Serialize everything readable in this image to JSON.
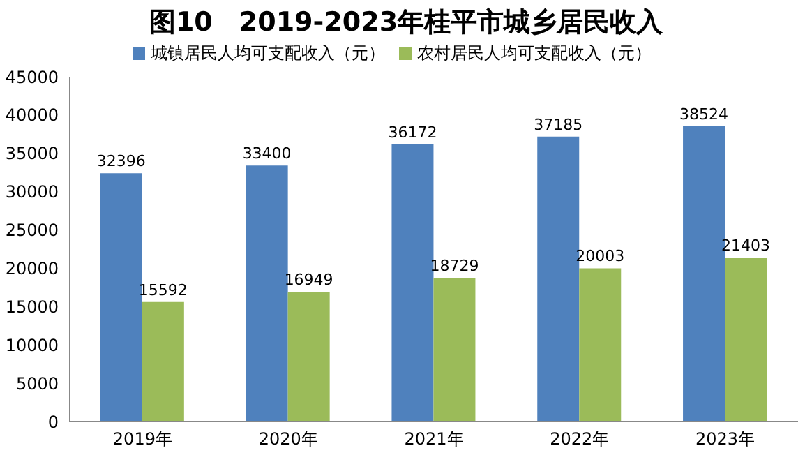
{
  "chart_data": {
    "type": "bar",
    "title": "图10　2019-2023年桂平市城乡居民收入",
    "categories": [
      "2019年",
      "2020年",
      "2021年",
      "2022年",
      "2023年"
    ],
    "series": [
      {
        "name": "城镇居民人均可支配收入（元）",
        "color": "#4f81bd",
        "values": [
          32396,
          33400,
          36172,
          37185,
          38524
        ]
      },
      {
        "name": "农村居民人均可支配收入（元）",
        "color": "#9bbb59",
        "values": [
          15592,
          16949,
          18729,
          20003,
          21403
        ]
      }
    ],
    "ylim": [
      0,
      45000
    ],
    "yticks": [
      0,
      5000,
      10000,
      15000,
      20000,
      25000,
      30000,
      35000,
      40000,
      45000
    ],
    "grid": false,
    "legend": "top",
    "data_labels": true
  }
}
